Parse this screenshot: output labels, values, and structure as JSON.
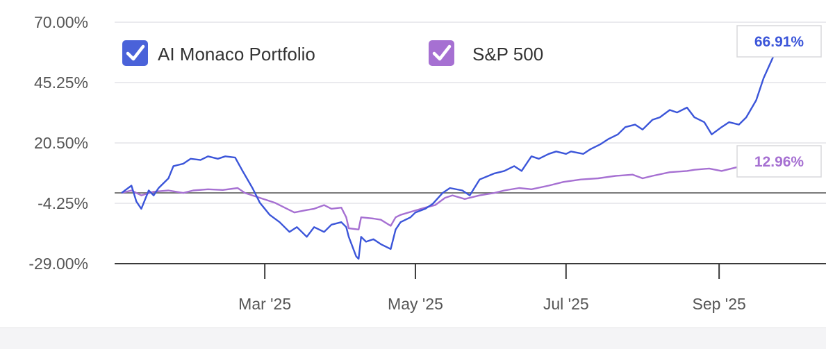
{
  "chart_data": {
    "type": "line",
    "y_ticks": [
      "70.00%",
      "45.25%",
      "20.50%",
      "-4.25%",
      "-29.00%"
    ],
    "ylim": [
      -29.0,
      70.0
    ],
    "x_ticks": [
      "Mar '25",
      "May '25",
      "Jul '25",
      "Sep '25"
    ],
    "grid": true,
    "legend_position": "top-left",
    "series": [
      {
        "name": "AI Monaco Portfolio",
        "color": "#3b55d9",
        "end_label": "66.91%",
        "points": [
          [
            "2025-01-02",
            0.0
          ],
          [
            "2025-01-06",
            3.0
          ],
          [
            "2025-01-08",
            -3.5
          ],
          [
            "2025-01-10",
            -6.5
          ],
          [
            "2025-01-13",
            1.0
          ],
          [
            "2025-01-15",
            -1.0
          ],
          [
            "2025-01-17",
            2.0
          ],
          [
            "2025-01-21",
            6.0
          ],
          [
            "2025-01-23",
            11.0
          ],
          [
            "2025-01-27",
            12.0
          ],
          [
            "2025-01-30",
            14.0
          ],
          [
            "2025-02-03",
            13.5
          ],
          [
            "2025-02-06",
            15.0
          ],
          [
            "2025-02-10",
            14.0
          ],
          [
            "2025-02-13",
            15.0
          ],
          [
            "2025-02-17",
            14.5
          ],
          [
            "2025-02-20",
            9.0
          ],
          [
            "2025-02-24",
            2.0
          ],
          [
            "2025-02-27",
            -4.0
          ],
          [
            "2025-03-03",
            -9.0
          ],
          [
            "2025-03-07",
            -12.0
          ],
          [
            "2025-03-11",
            -16.0
          ],
          [
            "2025-03-14",
            -14.0
          ],
          [
            "2025-03-18",
            -18.0
          ],
          [
            "2025-03-21",
            -14.0
          ],
          [
            "2025-03-25",
            -16.0
          ],
          [
            "2025-03-28",
            -13.0
          ],
          [
            "2025-04-01",
            -12.0
          ],
          [
            "2025-04-03",
            -14.0
          ],
          [
            "2025-04-04",
            -18.0
          ],
          [
            "2025-04-07",
            -26.0
          ],
          [
            "2025-04-08",
            -27.0
          ],
          [
            "2025-04-09",
            -18.0
          ],
          [
            "2025-04-11",
            -20.0
          ],
          [
            "2025-04-14",
            -19.0
          ],
          [
            "2025-04-17",
            -21.0
          ],
          [
            "2025-04-21",
            -23.0
          ],
          [
            "2025-04-23",
            -15.0
          ],
          [
            "2025-04-25",
            -12.0
          ],
          [
            "2025-04-29",
            -10.0
          ],
          [
            "2025-05-01",
            -8.0
          ],
          [
            "2025-05-05",
            -6.5
          ],
          [
            "2025-05-08",
            -4.5
          ],
          [
            "2025-05-12",
            0.0
          ],
          [
            "2025-05-15",
            2.0
          ],
          [
            "2025-05-20",
            1.0
          ],
          [
            "2025-05-23",
            -1.0
          ],
          [
            "2025-05-27",
            5.5
          ],
          [
            "2025-06-02",
            8.0
          ],
          [
            "2025-06-06",
            9.0
          ],
          [
            "2025-06-10",
            11.0
          ],
          [
            "2025-06-13",
            9.0
          ],
          [
            "2025-06-17",
            15.0
          ],
          [
            "2025-06-20",
            14.0
          ],
          [
            "2025-06-24",
            16.0
          ],
          [
            "2025-06-27",
            17.0
          ],
          [
            "2025-07-01",
            16.0
          ],
          [
            "2025-07-03",
            17.0
          ],
          [
            "2025-07-08",
            16.0
          ],
          [
            "2025-07-11",
            18.0
          ],
          [
            "2025-07-15",
            20.0
          ],
          [
            "2025-07-18",
            22.0
          ],
          [
            "2025-07-22",
            24.0
          ],
          [
            "2025-07-25",
            27.0
          ],
          [
            "2025-07-29",
            28.0
          ],
          [
            "2025-08-01",
            26.0
          ],
          [
            "2025-08-05",
            30.0
          ],
          [
            "2025-08-08",
            31.0
          ],
          [
            "2025-08-12",
            34.0
          ],
          [
            "2025-08-15",
            33.0
          ],
          [
            "2025-08-19",
            35.0
          ],
          [
            "2025-08-22",
            31.0
          ],
          [
            "2025-08-26",
            29.0
          ],
          [
            "2025-08-29",
            24.0
          ],
          [
            "2025-09-02",
            27.0
          ],
          [
            "2025-09-05",
            29.0
          ],
          [
            "2025-09-09",
            28.0
          ],
          [
            "2025-09-12",
            31.0
          ],
          [
            "2025-09-16",
            38.0
          ],
          [
            "2025-09-19",
            47.0
          ],
          [
            "2025-09-23",
            56.0
          ],
          [
            "2025-09-26",
            66.91
          ]
        ]
      },
      {
        "name": "S&P 500",
        "color": "#a670d2",
        "end_label": "12.96%",
        "points": [
          [
            "2025-01-02",
            0.0
          ],
          [
            "2025-01-06",
            1.0
          ],
          [
            "2025-01-10",
            -1.0
          ],
          [
            "2025-01-15",
            0.5
          ],
          [
            "2025-01-21",
            1.0
          ],
          [
            "2025-01-27",
            0.0
          ],
          [
            "2025-01-31",
            1.0
          ],
          [
            "2025-02-06",
            1.5
          ],
          [
            "2025-02-12",
            1.2
          ],
          [
            "2025-02-18",
            2.0
          ],
          [
            "2025-02-21",
            0.0
          ],
          [
            "2025-02-27",
            -2.0
          ],
          [
            "2025-03-05",
            -4.0
          ],
          [
            "2025-03-10",
            -6.5
          ],
          [
            "2025-03-13",
            -8.0
          ],
          [
            "2025-03-18",
            -7.0
          ],
          [
            "2025-03-21",
            -6.5
          ],
          [
            "2025-03-25",
            -5.0
          ],
          [
            "2025-03-28",
            -6.5
          ],
          [
            "2025-04-01",
            -6.0
          ],
          [
            "2025-04-03",
            -10.0
          ],
          [
            "2025-04-04",
            -14.5
          ],
          [
            "2025-04-08",
            -15.0
          ],
          [
            "2025-04-09",
            -10.0
          ],
          [
            "2025-04-14",
            -10.5
          ],
          [
            "2025-04-17",
            -11.0
          ],
          [
            "2025-04-21",
            -13.5
          ],
          [
            "2025-04-23",
            -10.0
          ],
          [
            "2025-04-25",
            -9.0
          ],
          [
            "2025-04-30",
            -7.5
          ],
          [
            "2025-05-05",
            -6.0
          ],
          [
            "2025-05-09",
            -5.0
          ],
          [
            "2025-05-13",
            -2.0
          ],
          [
            "2025-05-16",
            -1.0
          ],
          [
            "2025-05-21",
            -2.5
          ],
          [
            "2025-05-27",
            -1.0
          ],
          [
            "2025-06-02",
            0.0
          ],
          [
            "2025-06-06",
            1.0
          ],
          [
            "2025-06-12",
            2.0
          ],
          [
            "2025-06-17",
            1.5
          ],
          [
            "2025-06-24",
            3.0
          ],
          [
            "2025-06-30",
            4.5
          ],
          [
            "2025-07-07",
            5.5
          ],
          [
            "2025-07-14",
            6.0
          ],
          [
            "2025-07-21",
            7.0
          ],
          [
            "2025-07-28",
            7.5
          ],
          [
            "2025-08-01",
            6.0
          ],
          [
            "2025-08-05",
            7.0
          ],
          [
            "2025-08-12",
            8.5
          ],
          [
            "2025-08-19",
            9.0
          ],
          [
            "2025-08-22",
            9.5
          ],
          [
            "2025-08-28",
            10.0
          ],
          [
            "2025-09-02",
            9.0
          ],
          [
            "2025-09-08",
            10.5
          ],
          [
            "2025-09-15",
            11.5
          ],
          [
            "2025-09-19",
            12.5
          ],
          [
            "2025-09-26",
            12.96
          ]
        ]
      }
    ]
  }
}
